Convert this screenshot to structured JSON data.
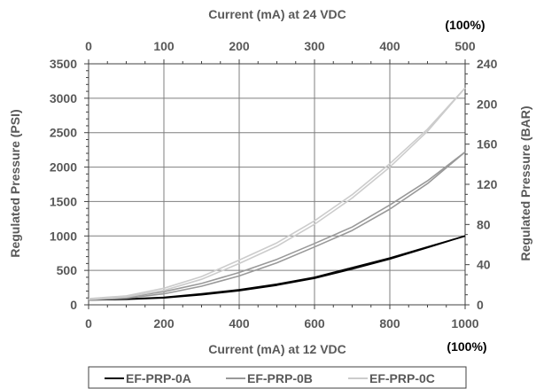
{
  "chart_data": {
    "type": "line",
    "top_axis_label": "Current (mA) at 24 VDC",
    "top_ticks": [
      "0",
      "100",
      "200",
      "300",
      "400",
      "500"
    ],
    "top_xlim": [
      0,
      500
    ],
    "top_corner_note": "(100%)",
    "xlabel": "Current (mA) at 12 VDC",
    "x_ticks": [
      "0",
      "200",
      "400",
      "600",
      "800",
      "1000"
    ],
    "xlim": [
      0,
      1000
    ],
    "bottom_corner_note": "(100%)",
    "ylabel": "Regulated Pressure (PSI)",
    "y_ticks": [
      "0",
      "500",
      "1000",
      "1500",
      "2000",
      "2500",
      "3000",
      "3500"
    ],
    "ylim": [
      0,
      3500
    ],
    "y2label": "Regulated Pressure (BAR)",
    "y2_ticks": [
      "0",
      "40",
      "80",
      "120",
      "160",
      "200",
      "240"
    ],
    "y2lim": [
      0,
      240
    ],
    "grid": true,
    "legend_position": "bottom",
    "x": [
      0,
      100,
      200,
      300,
      400,
      500,
      600,
      700,
      800,
      900,
      1000
    ],
    "series": [
      {
        "name": "EF-PRP-0A",
        "color": "#000000",
        "values_up": [
          75,
          85,
          110,
          160,
          220,
          300,
          400,
          540,
          680,
          840,
          1000
        ],
        "values_down": [
          70,
          80,
          100,
          145,
          205,
          285,
          385,
          520,
          665,
          830,
          1000
        ]
      },
      {
        "name": "EF-PRP-0B",
        "color": "#999999",
        "values_up": [
          80,
          110,
          190,
          310,
          470,
          660,
          890,
          1130,
          1450,
          1800,
          2220
        ],
        "values_down": [
          70,
          95,
          160,
          270,
          420,
          610,
          840,
          1080,
          1390,
          1760,
          2220
        ]
      },
      {
        "name": "EF-PRP-0C",
        "color": "#cccccc",
        "values_up": [
          90,
          130,
          240,
          410,
          650,
          900,
          1220,
          1600,
          2050,
          2550,
          3150
        ],
        "values_down": [
          80,
          115,
          210,
          370,
          600,
          850,
          1170,
          1550,
          2000,
          2520,
          3150
        ]
      }
    ]
  }
}
